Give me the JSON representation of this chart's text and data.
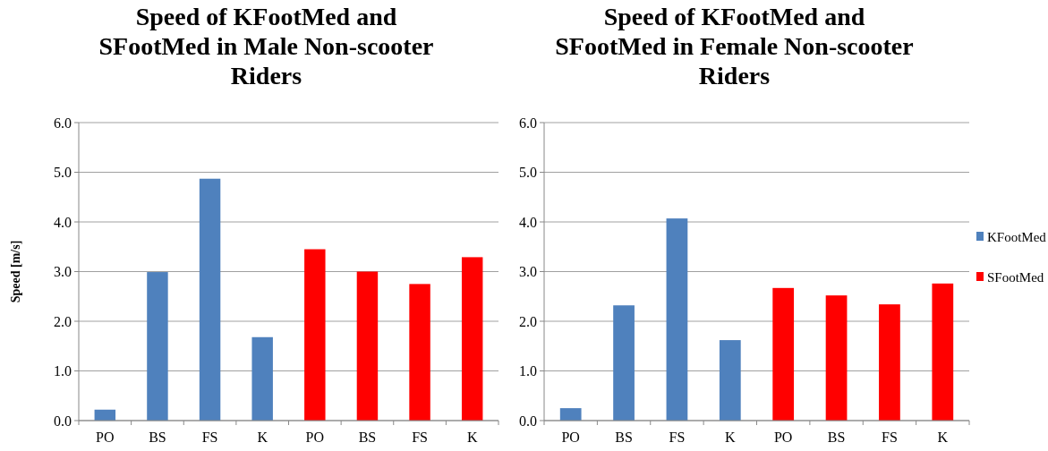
{
  "chart_data": [
    {
      "type": "bar",
      "title": "Speed of KFootMed and SFootMed in Male Non-scooter Riders",
      "ylabel": "Speed [m/s]",
      "categories": [
        "PO",
        "BS",
        "FS",
        "K",
        "PO",
        "BS",
        "FS",
        "K"
      ],
      "series": [
        {
          "color": "#4f81bd",
          "values": [
            0.22,
            2.99,
            4.87,
            1.68,
            null,
            null,
            null,
            null
          ]
        },
        {
          "color": "#ff0000",
          "values": [
            null,
            null,
            null,
            null,
            3.45,
            3.0,
            2.75,
            3.29
          ]
        }
      ],
      "ylim": [
        0,
        6
      ],
      "yticks": [
        {
          "value": 0,
          "label": "0.0"
        },
        {
          "value": 1,
          "label": "1.0"
        },
        {
          "value": 2,
          "label": "2.0"
        },
        {
          "value": 3,
          "label": "3.0"
        },
        {
          "value": 4,
          "label": "4.0"
        },
        {
          "value": 5,
          "label": "5.0"
        },
        {
          "value": 6,
          "label": "6.0"
        }
      ],
      "grid": "y",
      "legend": false
    },
    {
      "type": "bar",
      "title": "Speed of KFootMed and SFootMed in Female Non-scooter Riders",
      "categories": [
        "PO",
        "BS",
        "FS",
        "K",
        "PO",
        "BS",
        "FS",
        "K"
      ],
      "series": [
        {
          "name": "KFootMed",
          "color": "#4f81bd",
          "values": [
            0.25,
            2.32,
            4.07,
            1.62,
            null,
            null,
            null,
            null
          ]
        },
        {
          "name": "SFootMed",
          "color": "#ff0000",
          "values": [
            null,
            null,
            null,
            null,
            2.67,
            2.52,
            2.34,
            2.76
          ]
        }
      ],
      "ylim": [
        0,
        6
      ],
      "yticks": [
        {
          "value": 0,
          "label": "0.0"
        },
        {
          "value": 1,
          "label": "1.0"
        },
        {
          "value": 2,
          "label": "2.0"
        },
        {
          "value": 3,
          "label": "3.0"
        },
        {
          "value": 4,
          "label": "4.0"
        },
        {
          "value": 5,
          "label": "5.0"
        },
        {
          "value": 6,
          "label": "6.0"
        }
      ],
      "grid": "y",
      "legend": "right"
    }
  ]
}
